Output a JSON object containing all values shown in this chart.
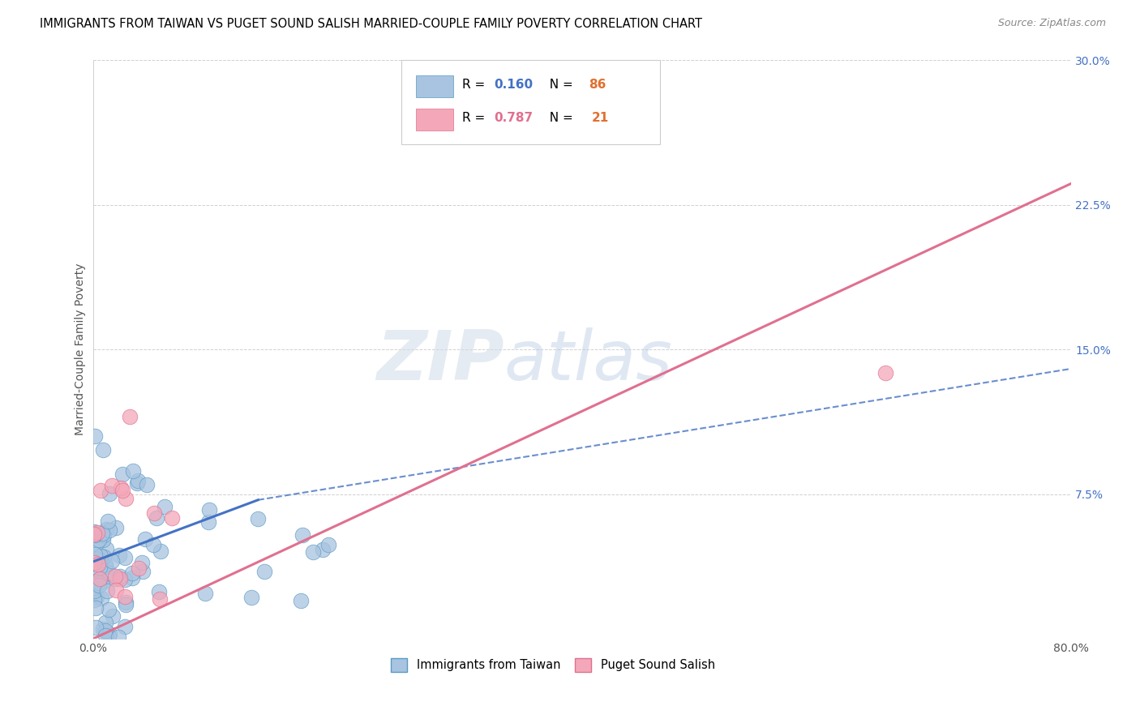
{
  "title": "IMMIGRANTS FROM TAIWAN VS PUGET SOUND SALISH MARRIED-COUPLE FAMILY POVERTY CORRELATION CHART",
  "source": "Source: ZipAtlas.com",
  "ylabel": "Married-Couple Family Poverty",
  "watermark": "ZIPatlas",
  "xlim": [
    0.0,
    0.8
  ],
  "ylim": [
    0.0,
    0.3
  ],
  "group1_name": "Immigrants from Taiwan",
  "group1_R": "0.160",
  "group1_N": "86",
  "group1_color": "#a8c4e0",
  "group1_edge": "#5a9ac5",
  "group2_name": "Puget Sound Salish",
  "group2_R": "0.787",
  "group2_N": "21",
  "group2_color": "#f4a7b9",
  "group2_edge": "#e07090",
  "blue_line_color": "#4472c4",
  "pink_line_color": "#e07090",
  "R_color": "#4472c4",
  "N_color": "#e07030",
  "blue_line1_x": [
    0.0,
    0.135
  ],
  "blue_line1_y": [
    0.04,
    0.072
  ],
  "blue_line2_x": [
    0.135,
    0.8
  ],
  "blue_line2_y": [
    0.072,
    0.14
  ],
  "pink_line_x": [
    0.0,
    0.8
  ],
  "pink_line_y": [
    0.0,
    0.236
  ],
  "title_fontsize": 10.5,
  "source_fontsize": 9,
  "tick_fontsize": 10,
  "legend_fontsize": 11
}
